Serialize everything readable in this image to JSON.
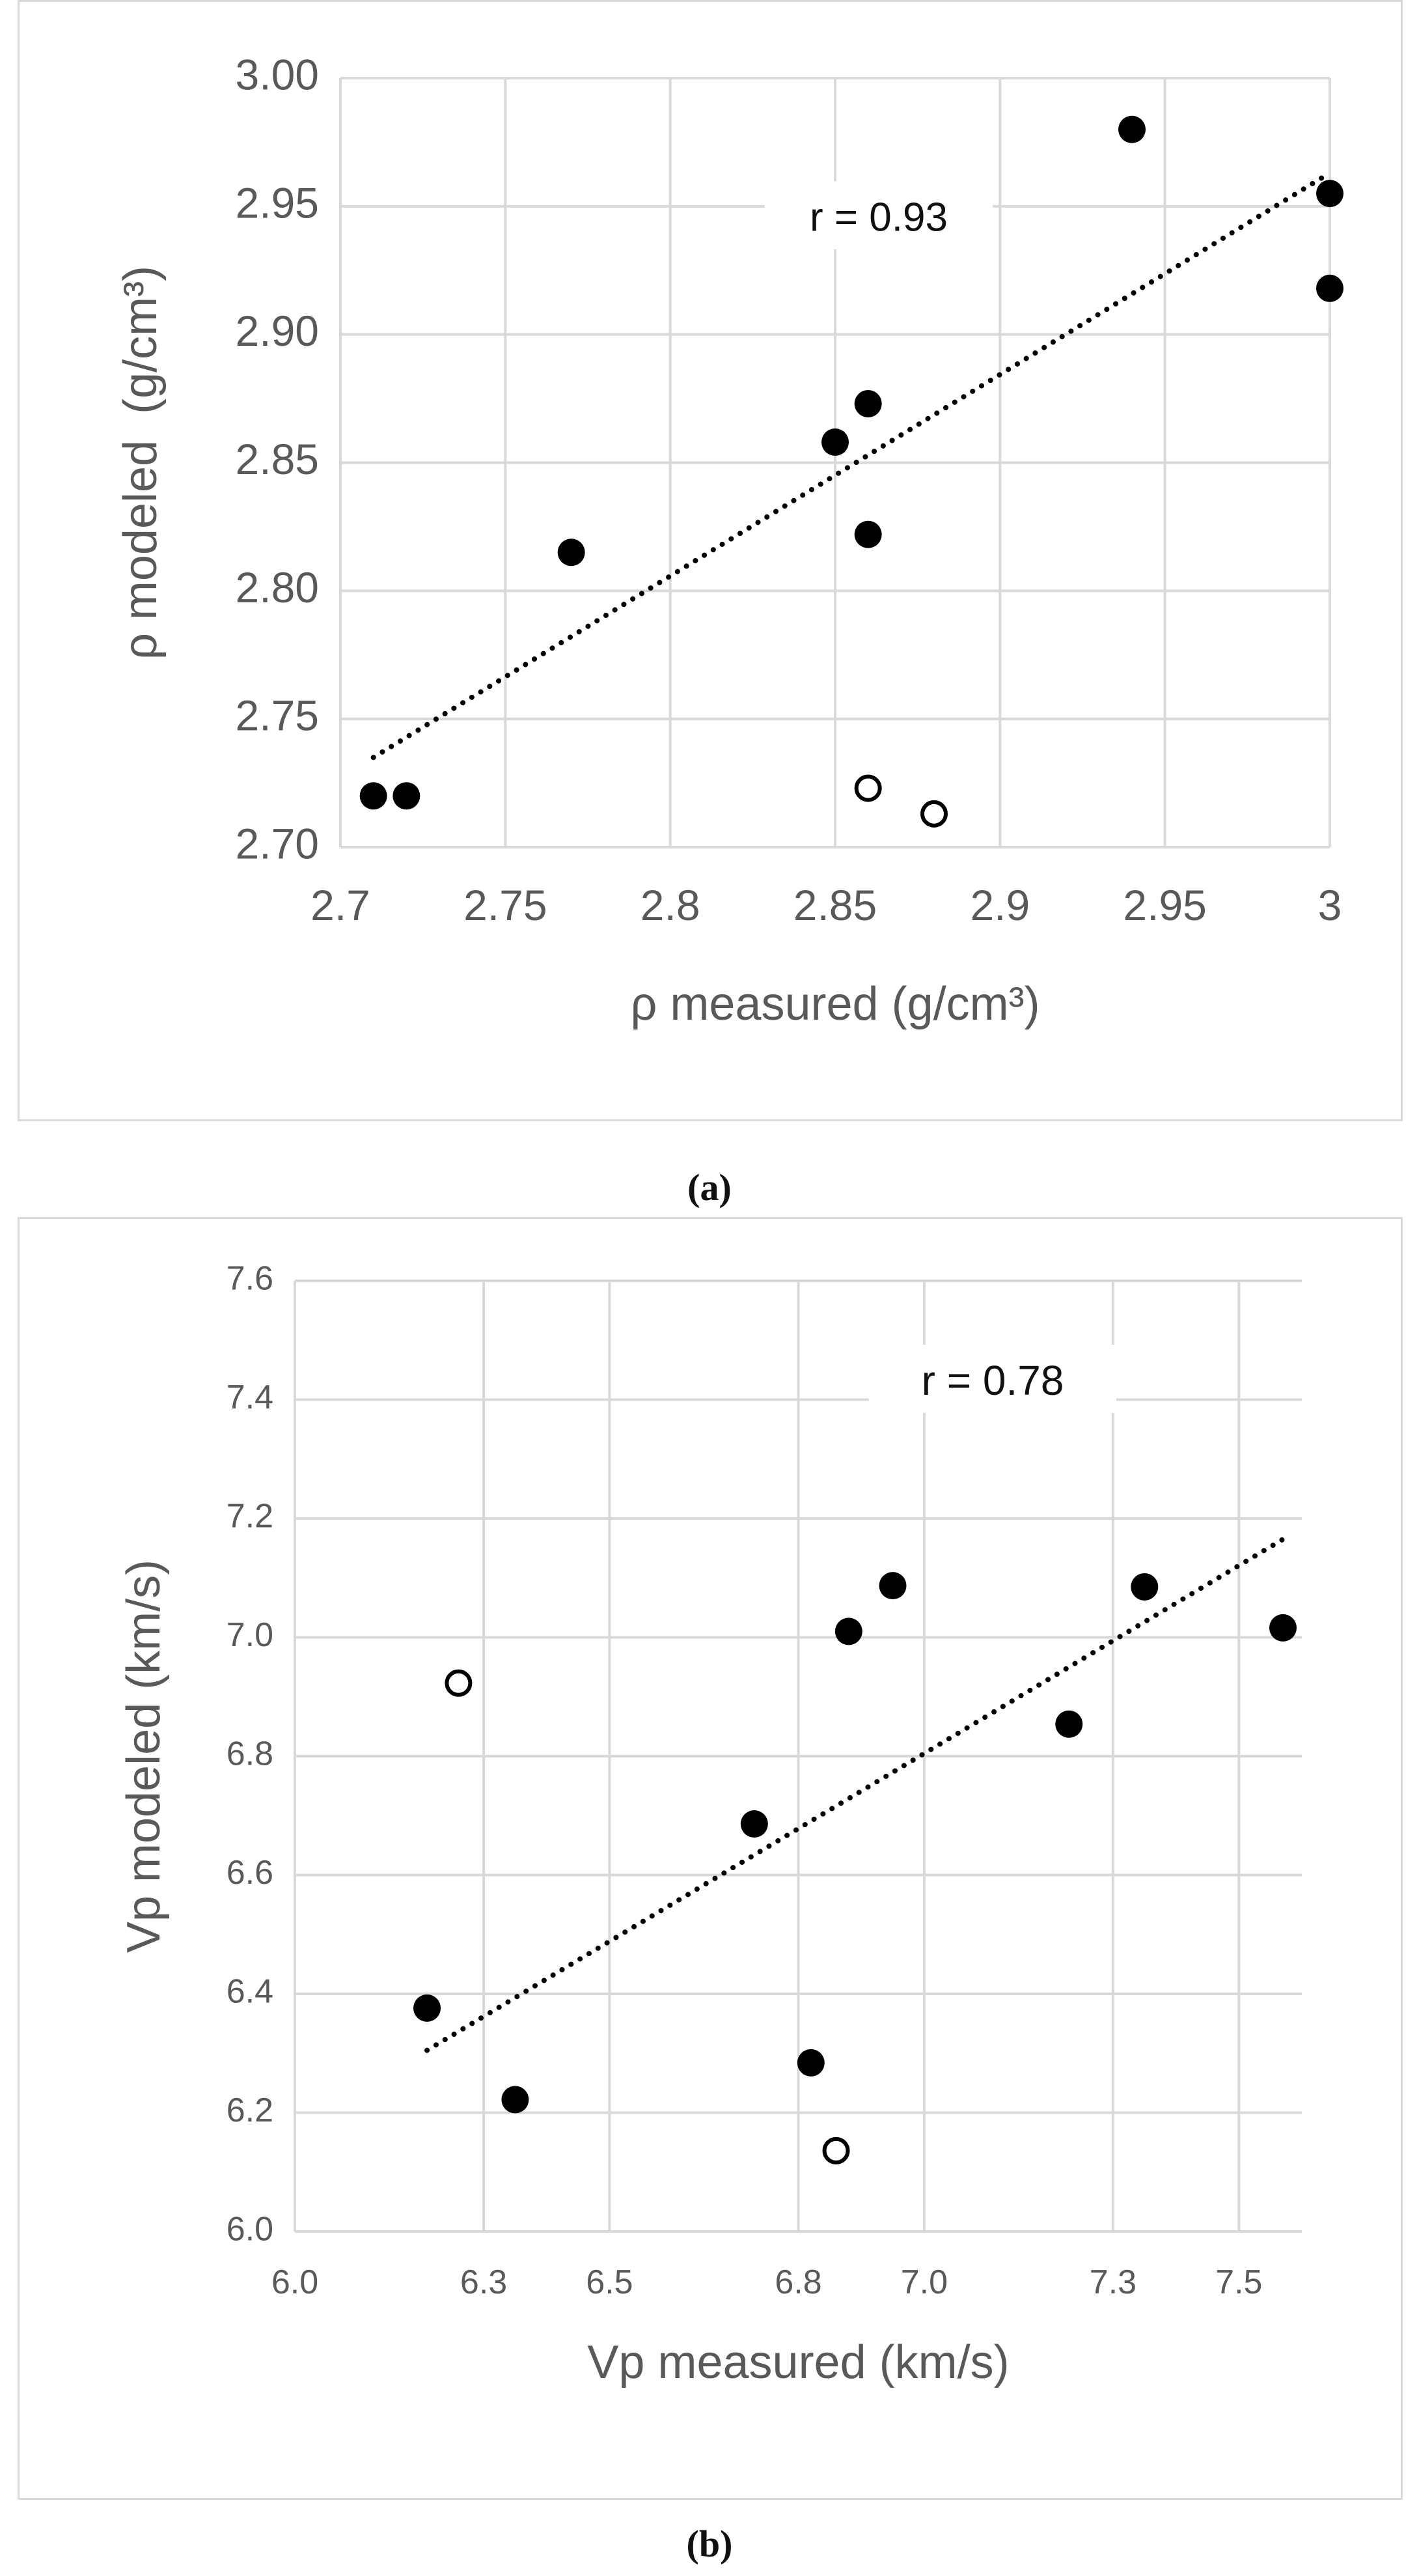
{
  "captions": {
    "a": "(a)",
    "b": "(b)"
  },
  "colors": {
    "grid": "#d9d9d9",
    "marker": "#000000",
    "text": "#595959",
    "annotation": "#111111"
  },
  "chart_data": [
    {
      "id": "a",
      "type": "scatter",
      "title": "",
      "xlabel": "ρ measured (g/cm³)",
      "ylabel": "ρ modeled  (g/cm³)",
      "xlim": [
        2.7,
        3.0
      ],
      "ylim": [
        2.7,
        3.0
      ],
      "xticks": [
        2.7,
        2.75,
        2.8,
        2.85,
        2.9,
        2.95,
        3.0
      ],
      "yticks": [
        2.7,
        2.75,
        2.8,
        2.85,
        2.9,
        2.95,
        3.0
      ],
      "xtick_labels": [
        "2.7",
        "2.75",
        "2.8",
        "2.85",
        "2.9",
        "2.95",
        "3"
      ],
      "ytick_labels": [
        "2.70",
        "2.75",
        "2.80",
        "2.85",
        "2.90",
        "2.95",
        "3.00"
      ],
      "grid": true,
      "annotation": "r = 0.93",
      "series": [
        {
          "name": "filled",
          "marker": "filled-circle",
          "x": [
            2.71,
            2.72,
            2.77,
            2.85,
            2.86,
            2.86,
            2.94,
            3.0,
            3.0
          ],
          "y": [
            2.72,
            2.72,
            2.815,
            2.858,
            2.873,
            2.822,
            2.98,
            2.955,
            2.918
          ]
        },
        {
          "name": "open",
          "marker": "open-circle",
          "x": [
            2.86,
            2.88
          ],
          "y": [
            2.723,
            2.713
          ]
        }
      ],
      "trendline": {
        "style": "dotted",
        "x": [
          2.71,
          3.0
        ],
        "y": [
          2.735,
          2.963
        ]
      }
    },
    {
      "id": "b",
      "type": "scatter",
      "title": "",
      "xlabel": "Vp measured (km/s)",
      "ylabel": "Vp modeled (km/s)",
      "xlim": [
        6.0,
        7.6
      ],
      "ylim": [
        6.0,
        7.6
      ],
      "xticks": [
        6.0,
        6.3,
        6.5,
        6.8,
        7.0,
        7.3,
        7.5
      ],
      "yticks": [
        6.0,
        6.2,
        6.4,
        6.6,
        6.8,
        7.0,
        7.2,
        7.4,
        7.6
      ],
      "xtick_labels": [
        "6.0",
        "6.3",
        "6.5",
        "6.8",
        "7.0",
        "7.3",
        "7.5"
      ],
      "ytick_labels": [
        "6.0",
        "6.2",
        "6.4",
        "6.6",
        "6.8",
        "7.0",
        "7.2",
        "7.4",
        "7.6"
      ],
      "grid": true,
      "annotation": "r = 0.78",
      "series": [
        {
          "name": "filled",
          "marker": "filled-circle",
          "x": [
            6.21,
            6.35,
            6.73,
            6.82,
            6.88,
            6.95,
            7.23,
            7.35,
            7.57
          ],
          "y": [
            6.376,
            6.222,
            6.686,
            6.284,
            7.01,
            7.087,
            6.854,
            7.085,
            7.016
          ]
        },
        {
          "name": "open",
          "marker": "open-circle",
          "x": [
            6.26,
            6.86
          ],
          "y": [
            6.923,
            6.136
          ]
        }
      ],
      "trendline": {
        "style": "dotted",
        "x": [
          6.21,
          7.57
        ],
        "y": [
          6.305,
          7.165
        ]
      }
    }
  ]
}
